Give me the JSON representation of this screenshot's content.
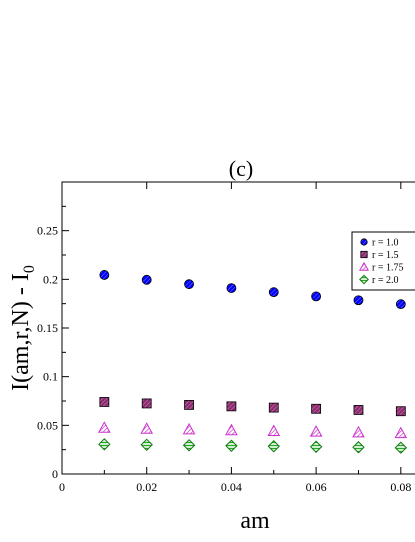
{
  "chart_data": {
    "type": "scatter",
    "title": "(c)",
    "xlabel": "am",
    "ylabel": "I(am,r,N) - I",
    "ylabel_subscript": "0",
    "xlim": [
      0,
      0.085
    ],
    "ylim": [
      0,
      0.3
    ],
    "xticks": [
      0,
      0.02,
      0.04,
      0.06,
      0.08
    ],
    "xtick_labels": [
      "0",
      "0.02",
      "0.04",
      "0.06",
      "0.08"
    ],
    "yticks": [
      0,
      0.05,
      0.1,
      0.15,
      0.2,
      0.25
    ],
    "ytick_labels": [
      "0",
      "0.05",
      "0.1",
      "0.15",
      "0.2",
      "0.25"
    ],
    "grid": false,
    "legend_position": "top-right",
    "x": [
      0.01,
      0.02,
      0.03,
      0.04,
      0.05,
      0.06,
      0.07,
      0.08
    ],
    "series": [
      {
        "name": "r = 1.0",
        "marker": "circle",
        "color": "#0000ff",
        "values": [
          0.2045,
          0.1995,
          0.195,
          0.191,
          0.1868,
          0.1825,
          0.1785,
          0.1745
        ]
      },
      {
        "name": "r = 1.5",
        "marker": "square",
        "color": "#8b2a6e",
        "values": [
          0.074,
          0.0725,
          0.071,
          0.0695,
          0.0682,
          0.067,
          0.0658,
          0.0645
        ]
      },
      {
        "name": "r = 1.75",
        "marker": "triangle",
        "color": "#cc33cc",
        "values": [
          0.0475,
          0.0465,
          0.0458,
          0.045,
          0.0442,
          0.0435,
          0.0428,
          0.042
        ]
      },
      {
        "name": "r = 2.0",
        "marker": "diamond",
        "color": "#22aa22",
        "values": [
          0.0305,
          0.03,
          0.0295,
          0.029,
          0.0285,
          0.028,
          0.0275,
          0.027
        ]
      }
    ]
  }
}
